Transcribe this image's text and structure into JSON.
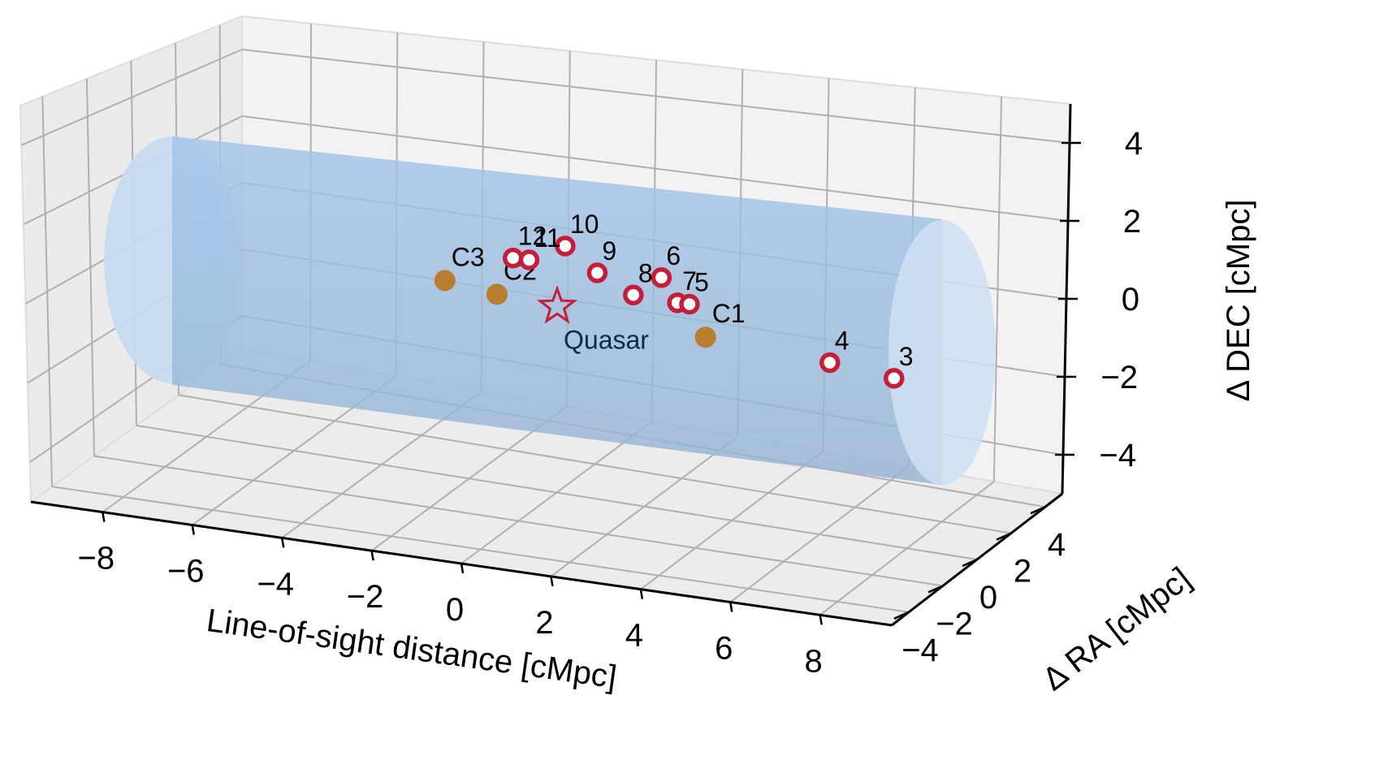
{
  "chart_data": {
    "type": "scatter",
    "projection": "3d",
    "xlabel": "Line-of-sight distance [cMpc]",
    "ylabel": "Δ RA [cMpc]",
    "zlabel": "Δ DEC [cMpc]",
    "xlim": [
      -9.6,
      9.6
    ],
    "ylim": [
      -5,
      5
    ],
    "zlim": [
      -5,
      5
    ],
    "x_ticks": [
      "−8",
      "−6",
      "−4",
      "−2",
      "0",
      "2",
      "4",
      "6",
      "8"
    ],
    "y_ticks": [
      "−4",
      "−2",
      "0",
      "2",
      "4"
    ],
    "z_ticks": [
      "4",
      "2",
      "0",
      "−2",
      "−4"
    ],
    "grid": true,
    "cylinder": {
      "axis": "x",
      "x_range": [
        -9.6,
        9.6
      ],
      "radius": 5,
      "color": "#a8c8ec"
    },
    "quasar": {
      "label": "Quasar",
      "x": 0,
      "y": 0,
      "z": 0,
      "color": "#c41e3a"
    },
    "galaxies": [
      {
        "label": "10",
        "x": 0.2,
        "y": 0,
        "z": 2.4
      },
      {
        "label": "12",
        "x": -1.1,
        "y": 0,
        "z": 1.7
      },
      {
        "label": "11",
        "x": -0.7,
        "y": 0,
        "z": 1.7
      },
      {
        "label": "9",
        "x": 1.0,
        "y": 0,
        "z": 1.5
      },
      {
        "label": "6",
        "x": 2.6,
        "y": 0,
        "z": 1.6
      },
      {
        "label": "8",
        "x": 1.9,
        "y": 0,
        "z": 0.8
      },
      {
        "label": "7",
        "x": 3.0,
        "y": 0,
        "z": 0.7
      },
      {
        "label": "5",
        "x": 3.3,
        "y": 0,
        "z": 0.7
      },
      {
        "label": "4",
        "x": 6.8,
        "y": 0,
        "z": -0.9
      },
      {
        "label": "3",
        "x": 8.4,
        "y": 0,
        "z": -1.2
      }
    ],
    "companions": [
      {
        "label": "C3",
        "x": -2.8,
        "y": 0,
        "z": 0.5
      },
      {
        "label": "C2",
        "x": -1.5,
        "y": 0,
        "z": 0.2
      },
      {
        "label": "C1",
        "x": 3.7,
        "y": 0,
        "z": -0.5
      }
    ],
    "colors": {
      "galaxy": "#c41e3a",
      "companion": "#b87d2e",
      "pane": "#f2f2f2",
      "grid": "#b0b0b0"
    }
  }
}
